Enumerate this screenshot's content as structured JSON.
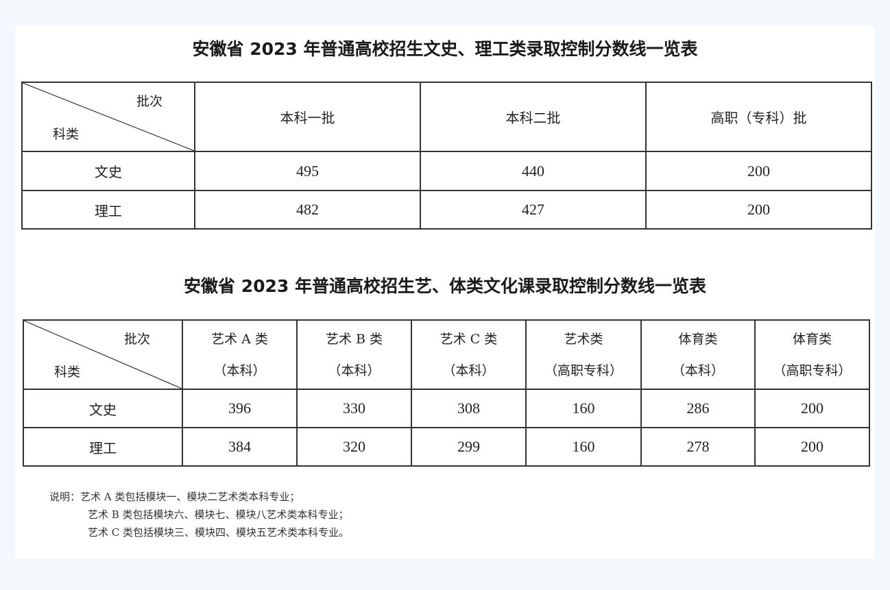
{
  "table1": {
    "title": "安徽省 2023 年普通高校招生文史、理工类录取控制分数线一览表",
    "corner_top": "批次",
    "corner_bottom": "科类",
    "headers": [
      "本科一批",
      "本科二批",
      "高职（专科）批"
    ],
    "rows": [
      {
        "label": "文史",
        "values": [
          "495",
          "440",
          "200"
        ]
      },
      {
        "label": "理工",
        "values": [
          "482",
          "427",
          "200"
        ]
      }
    ]
  },
  "table2": {
    "title": "安徽省 2023 年普通高校招生艺、体类文化课录取控制分数线一览表",
    "corner_top": "批次",
    "corner_bottom": "科类",
    "headers": [
      {
        "line1": "艺术 A 类",
        "line2": "（本科）"
      },
      {
        "line1": "艺术 B 类",
        "line2": "（本科）"
      },
      {
        "line1": "艺术 C 类",
        "line2": "（本科）"
      },
      {
        "line1": "艺术类",
        "line2": "（高职专科）"
      },
      {
        "line1": "体育类",
        "line2": "（本科）"
      },
      {
        "line1": "体育类",
        "line2": "（高职专科）"
      }
    ],
    "rows": [
      {
        "label": "文史",
        "values": [
          "396",
          "330",
          "308",
          "160",
          "286",
          "200"
        ]
      },
      {
        "label": "理工",
        "values": [
          "384",
          "320",
          "299",
          "160",
          "278",
          "200"
        ]
      }
    ]
  },
  "notes": [
    "说明：艺术 A 类包括模块一、模块二艺术类本科专业；",
    "艺术 B 类包括模块六、模块七、模块八艺术类本科专业；",
    "艺术 C 类包括模块三、模块四、模块五艺术类本科专业。"
  ]
}
